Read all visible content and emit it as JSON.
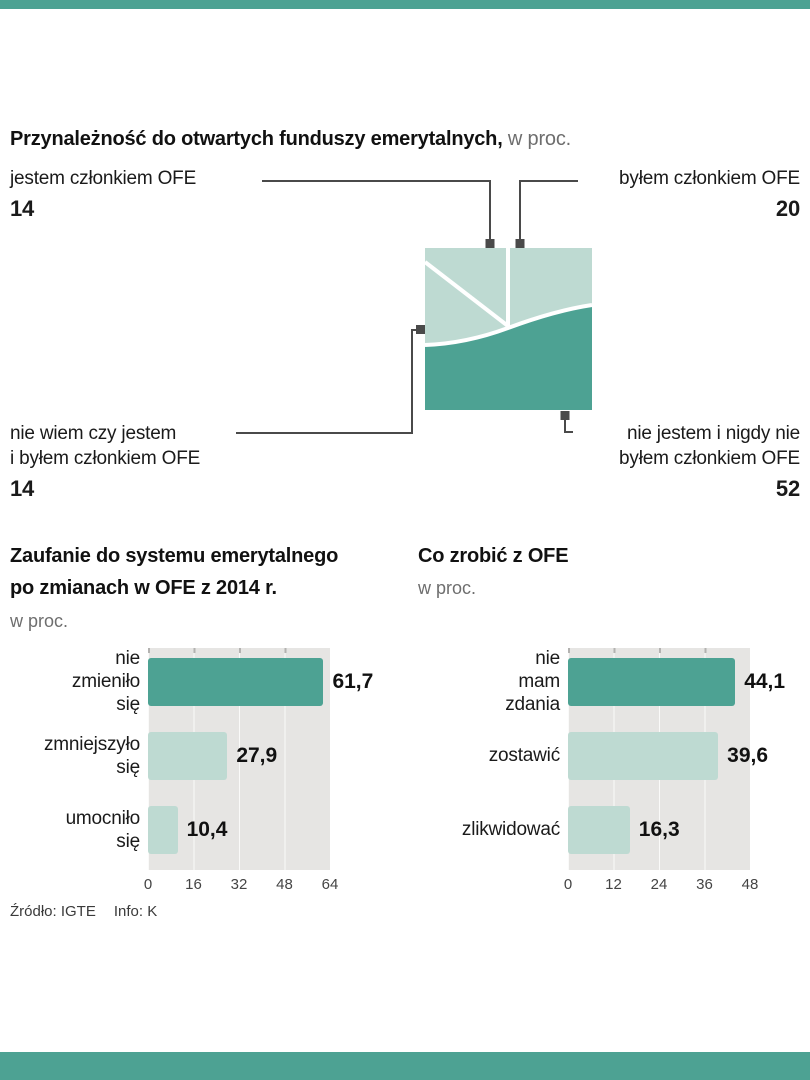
{
  "colors": {
    "dark_teal": "#4da293",
    "light_teal": "#bedad2",
    "panel_gray": "#e6e5e3",
    "connector_gray": "#4a4a4a"
  },
  "footer": {
    "source": "Źródło: IGTE",
    "info": "Info: K"
  },
  "chart_data": [
    {
      "type": "pie",
      "variant": "square-area",
      "title": "Przynależność do otwartych funduszy emerytalnych,",
      "title_suffix": "w proc.",
      "labels": [
        "jestem członkiem OFE",
        "byłem członkiem OFE",
        "nie wiem czy jestem i byłem członkiem OFE",
        "nie jestem i nigdy nie byłem członkiem OFE"
      ],
      "values": [
        14,
        20,
        14,
        52
      ],
      "callouts": [
        {
          "lines": [
            "jestem członkiem OFE"
          ],
          "value": "14"
        },
        {
          "lines": [
            "byłem członkiem OFE"
          ],
          "value": "20"
        },
        {
          "lines": [
            "nie wiem czy jestem",
            "i byłem członkiem OFE"
          ],
          "value": "14"
        },
        {
          "lines": [
            "nie jestem i nigdy nie",
            "byłem członkiem OFE"
          ],
          "value": "52"
        }
      ]
    },
    {
      "type": "bar",
      "orientation": "horizontal",
      "title_lines": [
        "Zaufanie do systemu emerytalnego",
        "po zmianach w OFE z 2014 r."
      ],
      "subtitle": "w proc.",
      "categories": [
        "nie zmieniło się",
        "zmniejszyło się",
        "umocniło się"
      ],
      "categories_lines": [
        [
          "nie",
          "zmieniło",
          "się"
        ],
        [
          "zmniejszyło",
          "się"
        ],
        [
          "umocniło",
          "się"
        ]
      ],
      "values": [
        61.7,
        27.9,
        10.4
      ],
      "value_labels": [
        "61,7",
        "27,9",
        "10,4"
      ],
      "bar_colors": [
        "dark",
        "light",
        "light"
      ],
      "ticks": [
        "0",
        "16",
        "32",
        "48",
        "64"
      ],
      "xlim": [
        0,
        64
      ],
      "grid": true,
      "legend": false
    },
    {
      "type": "bar",
      "orientation": "horizontal",
      "title_lines": [
        "Co zrobić z OFE"
      ],
      "subtitle": "w proc.",
      "categories": [
        "nie mam zdania",
        "zostawić",
        "zlikwidować"
      ],
      "categories_lines": [
        [
          "nie",
          "mam",
          "zdania"
        ],
        [
          "zostawić"
        ],
        [
          "zlikwidować"
        ]
      ],
      "values": [
        44.1,
        39.6,
        16.3
      ],
      "value_labels": [
        "44,1",
        "39,6",
        "16,3"
      ],
      "bar_colors": [
        "dark",
        "light",
        "light"
      ],
      "ticks": [
        "0",
        "12",
        "24",
        "36",
        "48"
      ],
      "xlim": [
        0,
        48
      ],
      "grid": true,
      "legend": false
    }
  ]
}
